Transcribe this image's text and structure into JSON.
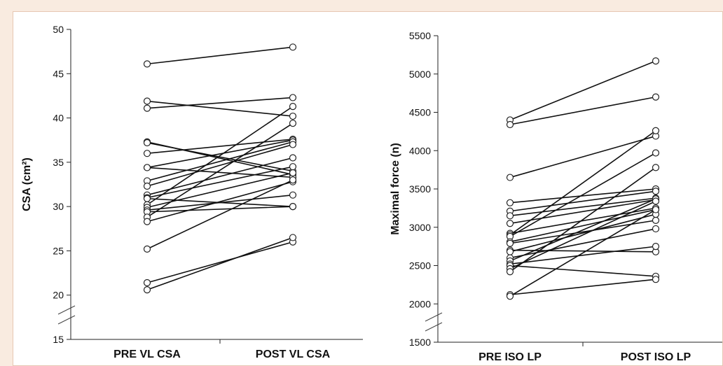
{
  "chart_data": [
    {
      "type": "line",
      "ylabel": "CSA (cm²)",
      "categories": [
        "PRE VL CSA",
        "POST VL CSA"
      ],
      "ylim": [
        15,
        50
      ],
      "yticks": [
        15,
        20,
        25,
        30,
        35,
        40,
        45,
        50
      ],
      "axis_break": true,
      "grid": false,
      "legend": "none",
      "pairs": [
        [
          46.1,
          48.0
        ],
        [
          41.9,
          40.2
        ],
        [
          41.1,
          42.3
        ],
        [
          37.3,
          33.6
        ],
        [
          37.2,
          34.0
        ],
        [
          36.0,
          37.6
        ],
        [
          34.4,
          33.3
        ],
        [
          34.4,
          37.5
        ],
        [
          32.9,
          37.3
        ],
        [
          32.3,
          37.0
        ],
        [
          31.3,
          35.5
        ],
        [
          31.0,
          34.5
        ],
        [
          30.9,
          30.0
        ],
        [
          30.2,
          41.3
        ],
        [
          29.9,
          33.8
        ],
        [
          29.6,
          31.3
        ],
        [
          29.4,
          30.0
        ],
        [
          28.8,
          39.4
        ],
        [
          28.3,
          32.8
        ],
        [
          25.2,
          33.0
        ],
        [
          21.4,
          26.0
        ],
        [
          20.6,
          26.5
        ]
      ]
    },
    {
      "type": "line",
      "ylabel": "Maximal force (n)",
      "categories": [
        "PRE ISO LP",
        "POST ISO LP"
      ],
      "ylim": [
        1500,
        5500
      ],
      "yticks": [
        1500,
        2000,
        2500,
        3000,
        3500,
        4000,
        4500,
        5000,
        5500
      ],
      "axis_break": true,
      "grid": false,
      "legend": "none",
      "pairs": [
        [
          4400,
          5170
        ],
        [
          4340,
          4700
        ],
        [
          3650,
          4190
        ],
        [
          3320,
          3500
        ],
        [
          3210,
          3470
        ],
        [
          3150,
          3380
        ],
        [
          3050,
          3360
        ],
        [
          2920,
          3250
        ],
        [
          2900,
          4260
        ],
        [
          2880,
          3970
        ],
        [
          2810,
          3230
        ],
        [
          2790,
          3090
        ],
        [
          2700,
          2680
        ],
        [
          2680,
          3170
        ],
        [
          2600,
          2980
        ],
        [
          2560,
          3370
        ],
        [
          2520,
          2750
        ],
        [
          2500,
          2360
        ],
        [
          2460,
          3340
        ],
        [
          2420,
          3780
        ],
        [
          2120,
          2320
        ],
        [
          2100,
          3230
        ]
      ]
    }
  ]
}
